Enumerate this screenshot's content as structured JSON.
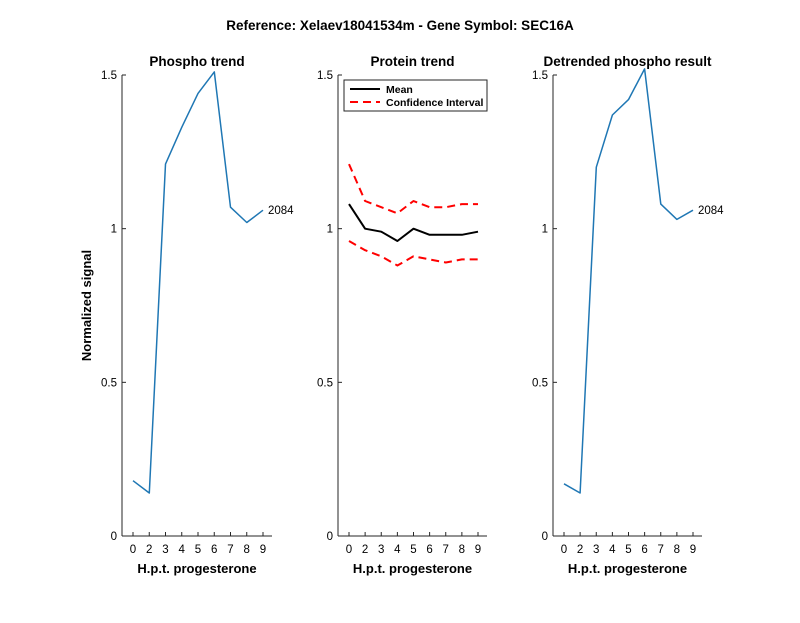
{
  "figure": {
    "suptitle": "Reference:  Xelaev18041534m - Gene Symbol:  SEC16A"
  },
  "chart_data": [
    {
      "type": "line",
      "title": "Phospho trend",
      "xlabel": "H.p.t. progesterone",
      "ylabel": "Normalized signal",
      "categories": [
        "0",
        "2",
        "3",
        "4",
        "5",
        "6",
        "7",
        "8",
        "9"
      ],
      "ylim": [
        0,
        1.5
      ],
      "yticks": [
        0,
        0.5,
        1,
        1.5
      ],
      "ytick_labels": [
        "0",
        "0.5",
        "1",
        "1.5"
      ],
      "series": [
        {
          "values": [
            0.18,
            0.14,
            1.21,
            1.33,
            1.44,
            1.51,
            1.07,
            1.02,
            1.06
          ],
          "color": "#1f77b4",
          "style": "solid",
          "end_label": "2084"
        }
      ]
    },
    {
      "type": "line",
      "title": "Protein trend",
      "xlabel": "H.p.t. progesterone",
      "ylabel": "",
      "categories": [
        "0",
        "2",
        "3",
        "4",
        "5",
        "6",
        "7",
        "8",
        "9"
      ],
      "ylim": [
        0,
        1.5
      ],
      "yticks": [
        0,
        0.5,
        1,
        1.5
      ],
      "ytick_labels": [
        "0",
        "0.5",
        "1",
        "1.5"
      ],
      "legend_position": "top",
      "series": [
        {
          "name": "Mean",
          "values": [
            1.08,
            1.0,
            0.99,
            0.96,
            1.0,
            0.98,
            0.98,
            0.98,
            0.99
          ],
          "color": "#000000",
          "style": "solid"
        },
        {
          "name": "Confidence Interval",
          "values": [
            1.21,
            1.09,
            1.07,
            1.05,
            1.09,
            1.07,
            1.07,
            1.08,
            1.08
          ],
          "color": "#ff0000",
          "style": "dashed"
        },
        {
          "values": [
            0.96,
            0.93,
            0.91,
            0.88,
            0.91,
            0.9,
            0.89,
            0.9,
            0.9
          ],
          "color": "#ff0000",
          "style": "dashed"
        }
      ]
    },
    {
      "type": "line",
      "title": "Detrended phospho result",
      "xlabel": "H.p.t. progesterone",
      "ylabel": "",
      "categories": [
        "0",
        "2",
        "3",
        "4",
        "5",
        "6",
        "7",
        "8",
        "9"
      ],
      "ylim": [
        0,
        1.5
      ],
      "yticks": [
        0,
        0.5,
        1,
        1.5
      ],
      "ytick_labels": [
        "0",
        "0.5",
        "1",
        "1.5"
      ],
      "series": [
        {
          "values": [
            0.17,
            0.14,
            1.2,
            1.37,
            1.42,
            1.52,
            1.08,
            1.03,
            1.06
          ],
          "color": "#1f77b4",
          "style": "solid",
          "end_label": "2084"
        }
      ]
    }
  ]
}
